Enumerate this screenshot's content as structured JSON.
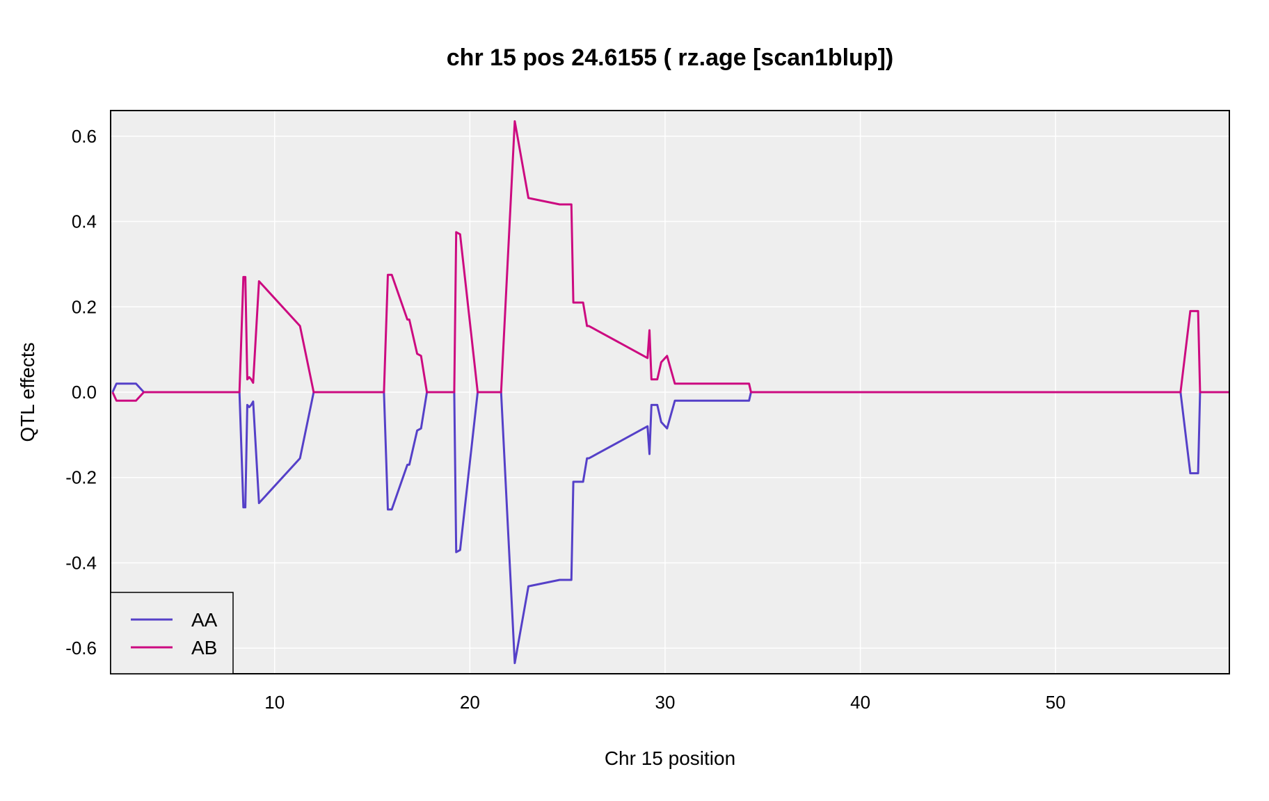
{
  "chart_data": {
    "type": "line",
    "title": "chr 15 pos 24.6155 ( rz.age  [scan1blup])",
    "xlabel": "Chr 15 position",
    "ylabel": "QTL effects",
    "xlim": [
      1.6,
      58.9
    ],
    "ylim": [
      -0.66,
      0.66
    ],
    "xticks": [
      10,
      20,
      30,
      40,
      50
    ],
    "yticks": [
      -0.6,
      -0.4,
      -0.2,
      0.0,
      0.2,
      0.4,
      0.6
    ],
    "ytick_labels": [
      "-0.6",
      "-0.4",
      "-0.2",
      "0.0",
      "0.2",
      "0.4",
      "0.6"
    ],
    "grid": true,
    "background": "#eeeeee",
    "legend_position": "bottom-left",
    "x": [
      1.7,
      1.9,
      2.9,
      3.3,
      8.2,
      8.4,
      8.5,
      8.6,
      8.7,
      8.8,
      8.9,
      9.2,
      11.3,
      12.0,
      15.6,
      15.8,
      16.0,
      16.8,
      16.9,
      17.3,
      17.5,
      17.8,
      19.2,
      19.3,
      19.5,
      20.4,
      21.6,
      22.3,
      23.0,
      24.6,
      25.2,
      25.3,
      25.8,
      26.0,
      26.1,
      26.3,
      26.5,
      29.1,
      29.2,
      29.3,
      29.6,
      29.8,
      30.1,
      30.5,
      32.3,
      32.4,
      34.3,
      34.4,
      36.6,
      37.3,
      37.4,
      56.4,
      56.9,
      57.3,
      57.4,
      58.9
    ],
    "series": [
      {
        "name": "AA",
        "color": "#5540c8",
        "values": [
          0.0,
          0.02,
          0.02,
          0.0,
          0.0,
          -0.27,
          -0.27,
          -0.03,
          -0.035,
          -0.03,
          -0.022,
          -0.26,
          -0.155,
          0.0,
          0.0,
          -0.275,
          -0.275,
          -0.17,
          -0.17,
          -0.09,
          -0.085,
          0.0,
          0.0,
          -0.375,
          -0.37,
          0.0,
          0.0,
          -0.635,
          -0.455,
          -0.44,
          -0.44,
          -0.21,
          -0.21,
          -0.155,
          -0.155,
          -0.15,
          -0.145,
          -0.08,
          -0.145,
          -0.03,
          -0.03,
          -0.07,
          -0.085,
          -0.02,
          -0.02,
          -0.02,
          -0.02,
          0.0,
          0.0,
          0.0,
          0.0,
          0.0,
          -0.19,
          -0.19,
          0.0,
          0.0
        ]
      },
      {
        "name": "AB",
        "color": "#cc0a80",
        "values": [
          0.0,
          -0.02,
          -0.02,
          0.0,
          0.0,
          0.27,
          0.27,
          0.03,
          0.035,
          0.03,
          0.022,
          0.26,
          0.155,
          0.0,
          0.0,
          0.275,
          0.275,
          0.17,
          0.17,
          0.09,
          0.085,
          0.0,
          0.0,
          0.375,
          0.37,
          0.0,
          0.0,
          0.635,
          0.455,
          0.44,
          0.44,
          0.21,
          0.21,
          0.155,
          0.155,
          0.15,
          0.145,
          0.08,
          0.145,
          0.03,
          0.03,
          0.07,
          0.085,
          0.02,
          0.02,
          0.02,
          0.02,
          0.0,
          0.0,
          0.0,
          0.0,
          0.0,
          0.19,
          0.19,
          0.0,
          0.0
        ]
      }
    ]
  }
}
